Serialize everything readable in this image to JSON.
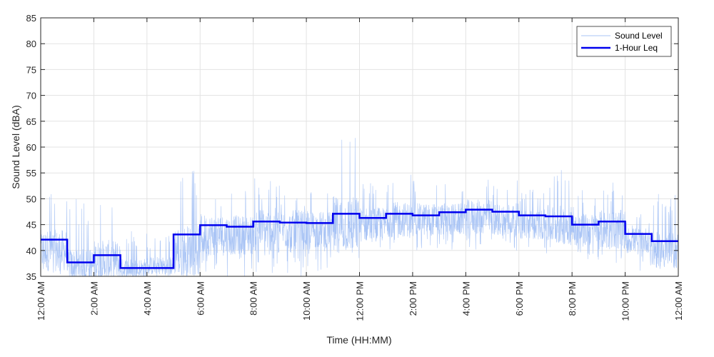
{
  "colors": {
    "sound_level": "#a9c4f5",
    "leq": "#0000ee",
    "grid": "#e3e3e3",
    "axis": "#262626"
  },
  "chart_data": {
    "type": "line",
    "title": "",
    "xlabel": "Time (HH:MM)",
    "ylabel": "Sound Level (dBA)",
    "xlim": [
      0,
      24
    ],
    "ylim": [
      35,
      85
    ],
    "x_unit": "hours since 12:00 AM",
    "y_ticks": [
      35,
      40,
      45,
      50,
      55,
      60,
      65,
      70,
      75,
      80,
      85
    ],
    "x_ticks": [
      {
        "hour": 0,
        "label": "12:00 AM"
      },
      {
        "hour": 2,
        "label": "2:00 AM"
      },
      {
        "hour": 4,
        "label": "4:00 AM"
      },
      {
        "hour": 6,
        "label": "6:00 AM"
      },
      {
        "hour": 8,
        "label": "8:00 AM"
      },
      {
        "hour": 10,
        "label": "10:00 AM"
      },
      {
        "hour": 12,
        "label": "12:00 PM"
      },
      {
        "hour": 14,
        "label": "2:00 PM"
      },
      {
        "hour": 16,
        "label": "4:00 PM"
      },
      {
        "hour": 18,
        "label": "6:00 PM"
      },
      {
        "hour": 20,
        "label": "8:00 PM"
      },
      {
        "hour": 22,
        "label": "10:00 PM"
      },
      {
        "hour": 24,
        "label": "12:00 AM"
      }
    ],
    "grid": true,
    "legend_position": "top-right",
    "series": [
      {
        "name": "Sound Level",
        "style": "thin noisy line",
        "hourly_approx_range": [
          {
            "hour": 0,
            "low": 35,
            "mid": 40,
            "high": 53
          },
          {
            "hour": 1,
            "low": 35,
            "mid": 37,
            "high": 50
          },
          {
            "hour": 2,
            "low": 35,
            "mid": 38,
            "high": 53
          },
          {
            "hour": 3,
            "low": 35,
            "mid": 36.5,
            "high": 44
          },
          {
            "hour": 4,
            "low": 35,
            "mid": 37,
            "high": 43
          },
          {
            "hour": 5,
            "low": 35,
            "mid": 40,
            "high": 57
          },
          {
            "hour": 6,
            "low": 35,
            "mid": 43,
            "high": 53
          },
          {
            "hour": 7,
            "low": 35,
            "mid": 43,
            "high": 52
          },
          {
            "hour": 8,
            "low": 35,
            "mid": 44,
            "high": 54
          },
          {
            "hour": 9,
            "low": 35,
            "mid": 44,
            "high": 52
          },
          {
            "hour": 10,
            "low": 36,
            "mid": 44,
            "high": 52
          },
          {
            "hour": 11,
            "low": 38,
            "mid": 45,
            "high": 62.5
          },
          {
            "hour": 12,
            "low": 39,
            "mid": 45,
            "high": 54
          },
          {
            "hour": 13,
            "low": 40,
            "mid": 46,
            "high": 55
          },
          {
            "hour": 14,
            "low": 40,
            "mid": 46,
            "high": 54
          },
          {
            "hour": 15,
            "low": 40,
            "mid": 46,
            "high": 54
          },
          {
            "hour": 16,
            "low": 40,
            "mid": 46.5,
            "high": 55
          },
          {
            "hour": 17,
            "low": 40,
            "mid": 46,
            "high": 54
          },
          {
            "hour": 18,
            "low": 40,
            "mid": 45,
            "high": 53
          },
          {
            "hour": 19,
            "low": 39,
            "mid": 45,
            "high": 56
          },
          {
            "hour": 20,
            "low": 38,
            "mid": 44,
            "high": 52
          },
          {
            "hour": 21,
            "low": 37,
            "mid": 44,
            "high": 54
          },
          {
            "hour": 22,
            "low": 36,
            "mid": 42,
            "high": 47
          },
          {
            "hour": 23,
            "low": 35,
            "mid": 40,
            "high": 51
          }
        ]
      },
      {
        "name": "1-Hour Leq",
        "style": "thick step line",
        "x": [
          0,
          1,
          2,
          3,
          4,
          5,
          6,
          7,
          8,
          9,
          10,
          11,
          12,
          13,
          14,
          15,
          16,
          17,
          18,
          19,
          20,
          21,
          22,
          23
        ],
        "values": [
          42.1,
          37.7,
          39.1,
          36.6,
          36.6,
          43.1,
          44.9,
          44.6,
          45.6,
          45.4,
          45.3,
          47.1,
          46.3,
          47.1,
          46.8,
          47.4,
          47.9,
          47.5,
          46.8,
          46.6,
          45.0,
          45.6,
          43.2,
          41.8
        ]
      }
    ]
  }
}
